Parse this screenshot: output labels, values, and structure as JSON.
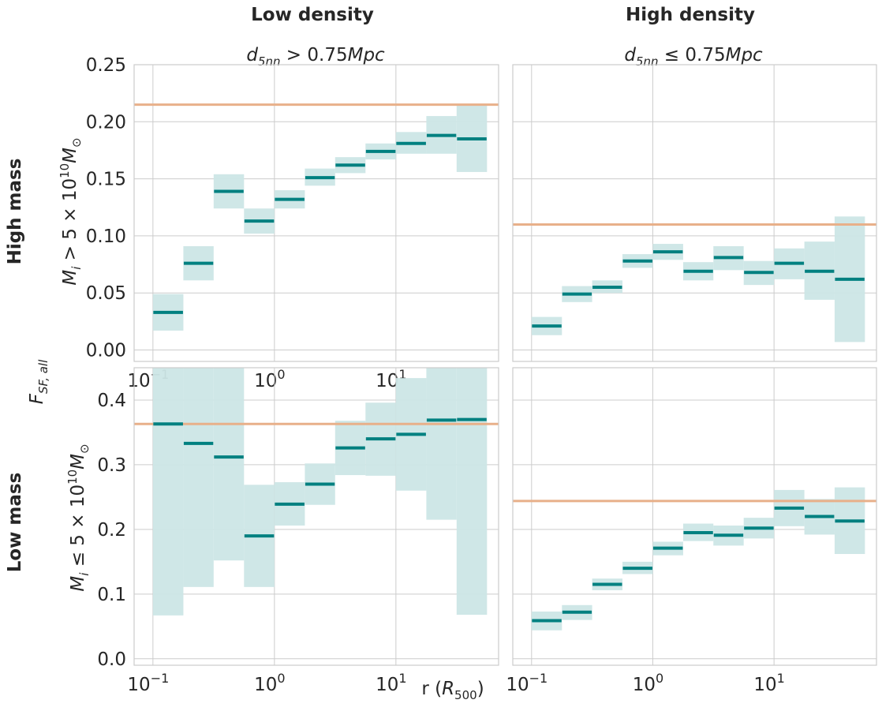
{
  "figure": {
    "col_headers": [
      "Low density",
      "High density"
    ],
    "col_subtitles": [
      "d5nn > 0.75Mpc",
      "d5nn ≤ 0.75Mpc"
    ],
    "row_headers": [
      "High mass",
      "Low mass"
    ],
    "row_ylabels": [
      "Mi > 5×10^10 M⊙",
      "Mi ≤ 5×10^10 M⊙"
    ],
    "shared_ylabel": "F_SF,all",
    "xlabel": "r (R500)",
    "colors": {
      "band": "#cce6e6",
      "line": "#008080",
      "ref": "#e8b08a",
      "grid": "#cccccc",
      "axis": "#cccccc"
    }
  },
  "chart_data": [
    {
      "type": "step-band",
      "panel": "top-left",
      "title": "d5nn > 0.75Mpc",
      "xscale": "log",
      "xlim": [
        0.07,
        70
      ],
      "ylim": [
        -0.01,
        0.25
      ],
      "xticks": [
        "10^-1",
        "10^0",
        "10^1"
      ],
      "yticks": [
        "0.00",
        "0.05",
        "0.10",
        "0.15",
        "0.20",
        "0.25"
      ],
      "reference_line": 0.215,
      "bins": [
        {
          "lo": 0.1,
          "hi": 0.178,
          "value": 0.033,
          "err_lo": 0.017,
          "err_hi": 0.049
        },
        {
          "lo": 0.178,
          "hi": 0.316,
          "value": 0.076,
          "err_lo": 0.061,
          "err_hi": 0.091
        },
        {
          "lo": 0.316,
          "hi": 0.562,
          "value": 0.139,
          "err_lo": 0.124,
          "err_hi": 0.154
        },
        {
          "lo": 0.562,
          "hi": 1.0,
          "value": 0.113,
          "err_lo": 0.102,
          "err_hi": 0.124
        },
        {
          "lo": 1.0,
          "hi": 1.78,
          "value": 0.132,
          "err_lo": 0.124,
          "err_hi": 0.14
        },
        {
          "lo": 1.78,
          "hi": 3.16,
          "value": 0.151,
          "err_lo": 0.144,
          "err_hi": 0.159
        },
        {
          "lo": 3.16,
          "hi": 5.62,
          "value": 0.162,
          "err_lo": 0.155,
          "err_hi": 0.169
        },
        {
          "lo": 5.62,
          "hi": 10.0,
          "value": 0.174,
          "err_lo": 0.167,
          "err_hi": 0.181
        },
        {
          "lo": 10.0,
          "hi": 17.8,
          "value": 0.181,
          "err_lo": 0.172,
          "err_hi": 0.191
        },
        {
          "lo": 17.8,
          "hi": 31.6,
          "value": 0.188,
          "err_lo": 0.172,
          "err_hi": 0.205
        },
        {
          "lo": 31.6,
          "hi": 56.2,
          "value": 0.185,
          "err_lo": 0.156,
          "err_hi": 0.215
        }
      ]
    },
    {
      "type": "step-band",
      "panel": "top-right",
      "title": "d5nn ≤ 0.75Mpc",
      "xscale": "log",
      "xlim": [
        0.07,
        70
      ],
      "ylim": [
        -0.01,
        0.25
      ],
      "xticks": [],
      "yticks": [],
      "reference_line": 0.11,
      "bins": [
        {
          "lo": 0.1,
          "hi": 0.178,
          "value": 0.021,
          "err_lo": 0.013,
          "err_hi": 0.029
        },
        {
          "lo": 0.178,
          "hi": 0.316,
          "value": 0.049,
          "err_lo": 0.042,
          "err_hi": 0.056
        },
        {
          "lo": 0.316,
          "hi": 0.562,
          "value": 0.055,
          "err_lo": 0.05,
          "err_hi": 0.061
        },
        {
          "lo": 0.562,
          "hi": 1.0,
          "value": 0.078,
          "err_lo": 0.072,
          "err_hi": 0.084
        },
        {
          "lo": 1.0,
          "hi": 1.78,
          "value": 0.086,
          "err_lo": 0.079,
          "err_hi": 0.093
        },
        {
          "lo": 1.78,
          "hi": 3.16,
          "value": 0.069,
          "err_lo": 0.061,
          "err_hi": 0.077
        },
        {
          "lo": 3.16,
          "hi": 5.62,
          "value": 0.081,
          "err_lo": 0.07,
          "err_hi": 0.091
        },
        {
          "lo": 5.62,
          "hi": 10.0,
          "value": 0.068,
          "err_lo": 0.057,
          "err_hi": 0.078
        },
        {
          "lo": 10.0,
          "hi": 17.8,
          "value": 0.076,
          "err_lo": 0.062,
          "err_hi": 0.089
        },
        {
          "lo": 17.8,
          "hi": 31.6,
          "value": 0.069,
          "err_lo": 0.044,
          "err_hi": 0.095
        },
        {
          "lo": 31.6,
          "hi": 56.2,
          "value": 0.062,
          "err_lo": 0.007,
          "err_hi": 0.117
        }
      ]
    },
    {
      "type": "step-band",
      "panel": "bottom-left",
      "title": "",
      "xscale": "log",
      "xlim": [
        0.07,
        70
      ],
      "ylim": [
        -0.01,
        0.45
      ],
      "xticks": [
        "10^-1",
        "10^0",
        "10^1"
      ],
      "yticks": [
        "0.0",
        "0.1",
        "0.2",
        "0.3",
        "0.4"
      ],
      "reference_line": 0.363,
      "bins": [
        {
          "lo": 0.1,
          "hi": 0.178,
          "value": 0.363,
          "err_lo": 0.067,
          "err_hi": 0.45
        },
        {
          "lo": 0.178,
          "hi": 0.316,
          "value": 0.333,
          "err_lo": 0.111,
          "err_hi": 0.45
        },
        {
          "lo": 0.316,
          "hi": 0.562,
          "value": 0.312,
          "err_lo": 0.152,
          "err_hi": 0.45
        },
        {
          "lo": 0.562,
          "hi": 1.0,
          "value": 0.19,
          "err_lo": 0.111,
          "err_hi": 0.269
        },
        {
          "lo": 1.0,
          "hi": 1.78,
          "value": 0.239,
          "err_lo": 0.206,
          "err_hi": 0.273
        },
        {
          "lo": 1.78,
          "hi": 3.16,
          "value": 0.27,
          "err_lo": 0.238,
          "err_hi": 0.302
        },
        {
          "lo": 3.16,
          "hi": 5.62,
          "value": 0.326,
          "err_lo": 0.284,
          "err_hi": 0.368
        },
        {
          "lo": 5.62,
          "hi": 10.0,
          "value": 0.34,
          "err_lo": 0.283,
          "err_hi": 0.396
        },
        {
          "lo": 10.0,
          "hi": 17.8,
          "value": 0.347,
          "err_lo": 0.26,
          "err_hi": 0.434
        },
        {
          "lo": 17.8,
          "hi": 31.6,
          "value": 0.369,
          "err_lo": 0.215,
          "err_hi": 0.45
        },
        {
          "lo": 31.6,
          "hi": 56.2,
          "value": 0.37,
          "err_lo": 0.068,
          "err_hi": 0.45
        }
      ]
    },
    {
      "type": "step-band",
      "panel": "bottom-right",
      "title": "",
      "xscale": "log",
      "xlim": [
        0.07,
        70
      ],
      "ylim": [
        -0.01,
        0.45
      ],
      "xticks": [
        "10^-1",
        "10^0",
        "10^1"
      ],
      "yticks": [],
      "reference_line": 0.244,
      "bins": [
        {
          "lo": 0.1,
          "hi": 0.178,
          "value": 0.059,
          "err_lo": 0.044,
          "err_hi": 0.073
        },
        {
          "lo": 0.178,
          "hi": 0.316,
          "value": 0.072,
          "err_lo": 0.06,
          "err_hi": 0.083
        },
        {
          "lo": 0.316,
          "hi": 0.562,
          "value": 0.115,
          "err_lo": 0.106,
          "err_hi": 0.124
        },
        {
          "lo": 0.562,
          "hi": 1.0,
          "value": 0.14,
          "err_lo": 0.131,
          "err_hi": 0.15
        },
        {
          "lo": 1.0,
          "hi": 1.78,
          "value": 0.171,
          "err_lo": 0.16,
          "err_hi": 0.181
        },
        {
          "lo": 1.78,
          "hi": 3.16,
          "value": 0.195,
          "err_lo": 0.182,
          "err_hi": 0.209
        },
        {
          "lo": 3.16,
          "hi": 5.62,
          "value": 0.191,
          "err_lo": 0.175,
          "err_hi": 0.206
        },
        {
          "lo": 5.62,
          "hi": 10.0,
          "value": 0.202,
          "err_lo": 0.186,
          "err_hi": 0.218
        },
        {
          "lo": 10.0,
          "hi": 17.8,
          "value": 0.233,
          "err_lo": 0.205,
          "err_hi": 0.261
        },
        {
          "lo": 17.8,
          "hi": 31.6,
          "value": 0.22,
          "err_lo": 0.192,
          "err_hi": 0.247
        },
        {
          "lo": 31.6,
          "hi": 56.2,
          "value": 0.213,
          "err_lo": 0.162,
          "err_hi": 0.265
        }
      ]
    }
  ]
}
